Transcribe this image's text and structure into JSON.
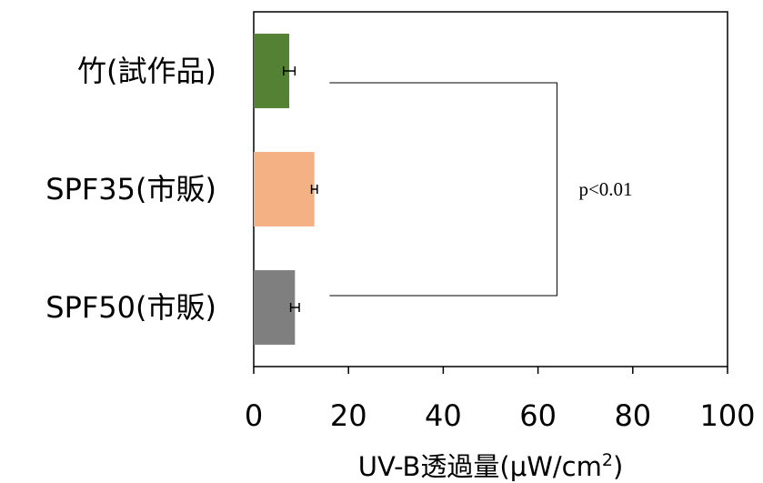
{
  "chart_data": {
    "type": "bar",
    "orientation": "horizontal",
    "categories": [
      "竹(試作品)",
      "SPF35(市販)",
      "SPF50(市販)"
    ],
    "values": [
      7.5,
      12.8,
      8.7
    ],
    "errors": [
      1.2,
      0.6,
      0.9
    ],
    "colors": [
      "#548235",
      "#f4b183",
      "#7f7f7f"
    ],
    "xlabel": "UV-B透過量(μW/cm²)",
    "xlabel_main": "UV-B透過量(μW/cm",
    "xlabel_sup": "2",
    "xlabel_end": ")",
    "xlim": [
      0,
      100
    ],
    "xticks": [
      0,
      20,
      40,
      60,
      80,
      100
    ],
    "xtick_labels": [
      "0",
      "20",
      "40",
      "60",
      "80",
      "100"
    ],
    "grid": false,
    "legend": "none",
    "annotation": {
      "text": "p<0.01",
      "bracket_from_category": "竹(試作品)",
      "bracket_to_category": "SPF50(市販)",
      "bracket_start_x": 16,
      "bracket_end_x": 64
    }
  }
}
